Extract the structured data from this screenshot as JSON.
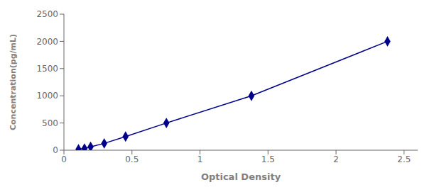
{
  "chart_data": {
    "type": "line",
    "xlabel": "Optical Density",
    "ylabel": "Concentration(pg/mL)",
    "x": [
      0.107,
      0.151,
      0.196,
      0.296,
      0.453,
      0.753,
      1.378,
      2.378
    ],
    "values": [
      15.6,
      31.25,
      62.5,
      125,
      250,
      500,
      1000,
      2000
    ],
    "color": "#00008B",
    "marker": "diamond",
    "line_style": "solid",
    "xlim": [
      0.0,
      2.6
    ],
    "ylim": [
      0,
      2500
    ],
    "xticks": [
      0,
      0.5,
      1,
      1.5,
      2,
      2.5
    ],
    "yticks": [
      0,
      500,
      1000,
      1500,
      2000,
      2500
    ],
    "grid": false
  }
}
